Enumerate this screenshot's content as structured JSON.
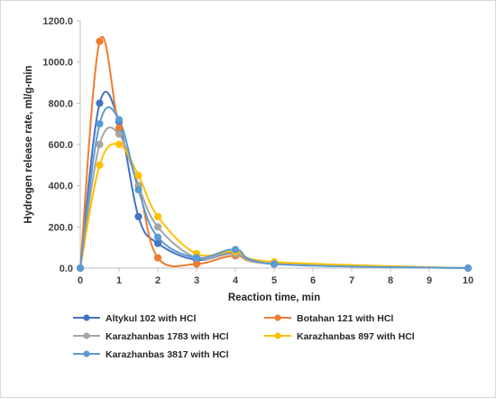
{
  "chart_data": {
    "type": "line",
    "title": "",
    "xlabel": "Reaction time, min",
    "ylabel": "Hydrogen release rate, ml/g-min",
    "xlim": [
      0,
      10
    ],
    "ylim": [
      0,
      1200
    ],
    "xticks": [
      0,
      1,
      2,
      3,
      4,
      5,
      6,
      7,
      8,
      9,
      10
    ],
    "xtick_labels": [
      "0",
      "1",
      "2",
      "3",
      "4",
      "5",
      "6",
      "7",
      "8",
      "9",
      "10"
    ],
    "yticks": [
      0,
      200,
      400,
      600,
      800,
      1000,
      1200
    ],
    "ytick_labels": [
      "0.0",
      "200.0",
      "400.0",
      "600.0",
      "800.0",
      "1000.0",
      "1200.0"
    ],
    "grid": "none",
    "smooth": true,
    "legend_position": "bottom",
    "series": [
      {
        "name": "Altykul 102 with HCl",
        "color": "#4472C4",
        "x": [
          0,
          0.5,
          1,
          1.5,
          2,
          3,
          4,
          5,
          10
        ],
        "y": [
          0,
          800,
          710,
          250,
          120,
          40,
          75,
          20,
          0
        ]
      },
      {
        "name": "Botahan 121 with HCl",
        "color": "#ED7D31",
        "x": [
          0,
          0.5,
          1,
          1.5,
          2,
          3,
          4,
          5,
          10
        ],
        "y": [
          0,
          1100,
          680,
          400,
          50,
          20,
          60,
          20,
          0
        ]
      },
      {
        "name": "Karazhanbas 1783 with HCl",
        "color": "#A5A5A5",
        "x": [
          0,
          0.5,
          1,
          1.5,
          2,
          3,
          4,
          5,
          10
        ],
        "y": [
          0,
          600,
          650,
          400,
          200,
          50,
          70,
          20,
          0
        ]
      },
      {
        "name": "Karazhanbas 897 with HCl",
        "color": "#FFC000",
        "x": [
          0,
          0.5,
          1,
          1.5,
          2,
          3,
          4,
          5,
          10
        ],
        "y": [
          0,
          500,
          600,
          450,
          250,
          70,
          80,
          30,
          0
        ]
      },
      {
        "name": "Karazhanbas 3817 with HCl",
        "color": "#5B9BD5",
        "x": [
          0,
          0.5,
          1,
          1.5,
          2,
          3,
          4,
          5,
          10
        ],
        "y": [
          0,
          700,
          720,
          380,
          150,
          50,
          90,
          20,
          0
        ]
      }
    ]
  }
}
